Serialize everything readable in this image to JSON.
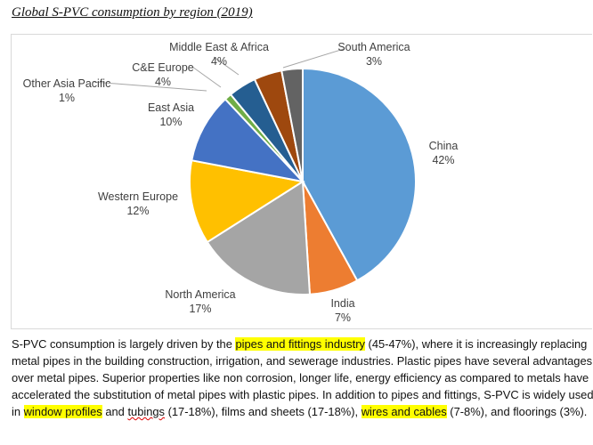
{
  "chart_data": {
    "type": "pie",
    "title": "Global S-PVC consumption by region (2019)",
    "start_angle_deg": 0,
    "direction": "clockwise",
    "slices": [
      {
        "label": "China",
        "value": 42,
        "display": "42%",
        "color": "#5B9BD5"
      },
      {
        "label": "India",
        "value": 7,
        "display": "7%",
        "color": "#ED7D31"
      },
      {
        "label": "North America",
        "value": 17,
        "display": "17%",
        "color": "#A5A5A5"
      },
      {
        "label": "Western Europe",
        "value": 12,
        "display": "12%",
        "color": "#FFC000"
      },
      {
        "label": "East Asia",
        "value": 10,
        "display": "10%",
        "color": "#4472C4"
      },
      {
        "label": "Other Asia Pacific",
        "value": 1,
        "display": "1%",
        "color": "#70AD47"
      },
      {
        "label": "C&E Europe",
        "value": 4,
        "display": "4%",
        "color": "#255E91"
      },
      {
        "label": "Middle East & Africa",
        "value": 4,
        "display": "4%",
        "color": "#9E480E"
      },
      {
        "label": "South America",
        "value": 3,
        "display": "3%",
        "color": "#636363"
      }
    ]
  },
  "paragraph": [
    {
      "text": "S-PVC consumption is largely driven by the "
    },
    {
      "text": "pipes and fittings industry",
      "highlight": true
    },
    {
      "text": " (45-47%), where it is increasingly replacing metal pipes in the building construction, irrigation, and sewerage industries. Plastic pipes have several advantages over metal pipes. Superior properties like non corrosion, longer life, energy efficiency as compared to metals have accelerated the substitution of metal pipes with plastic pipes. In addition to pipes and fittings, S-PVC is widely used in "
    },
    {
      "text": "window profiles",
      "highlight": true
    },
    {
      "text": " and "
    },
    {
      "text": "tubings",
      "spellcheck": true
    },
    {
      "text": " (17-18%), films and sheets (17-18%), "
    },
    {
      "text": "wires and cables",
      "highlight": true
    },
    {
      "text": " (7-8%), and floorings (3%)."
    }
  ]
}
